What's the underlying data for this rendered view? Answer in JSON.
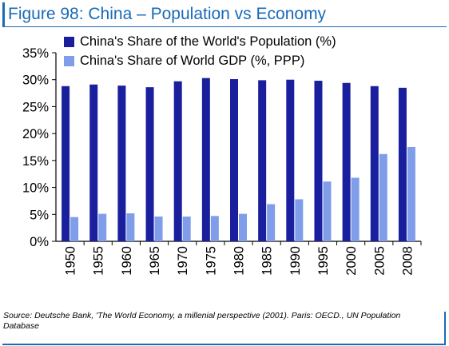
{
  "figure": {
    "title": "Figure 98: China – Population vs Economy",
    "source": "Source: Deutsche Bank, 'The World Economy, a millenial perspective (2001). Paris: OECD., UN Population Database"
  },
  "chart_data": {
    "type": "bar",
    "categories": [
      "1950",
      "1955",
      "1960",
      "1965",
      "1970",
      "1975",
      "1980",
      "1985",
      "1990",
      "1995",
      "2000",
      "2005",
      "2008"
    ],
    "series": [
      {
        "name": "China's Share of the World's Population (%)",
        "color": "#1a1f9e",
        "values": [
          28.8,
          29.1,
          28.9,
          28.6,
          29.7,
          30.3,
          30.1,
          29.9,
          30.0,
          29.8,
          29.4,
          28.8,
          28.5
        ]
      },
      {
        "name": "China's Share of World GDP (%, PPP)",
        "color": "#7f9de8",
        "values": [
          4.5,
          5.1,
          5.2,
          4.6,
          4.6,
          4.7,
          5.1,
          6.9,
          7.8,
          11.1,
          11.8,
          16.2,
          17.5
        ]
      }
    ],
    "y_ticks": [
      "0%",
      "5%",
      "10%",
      "15%",
      "20%",
      "25%",
      "30%",
      "35%"
    ],
    "ylim": [
      0,
      35
    ],
    "grid": false,
    "legend": "top-left"
  }
}
